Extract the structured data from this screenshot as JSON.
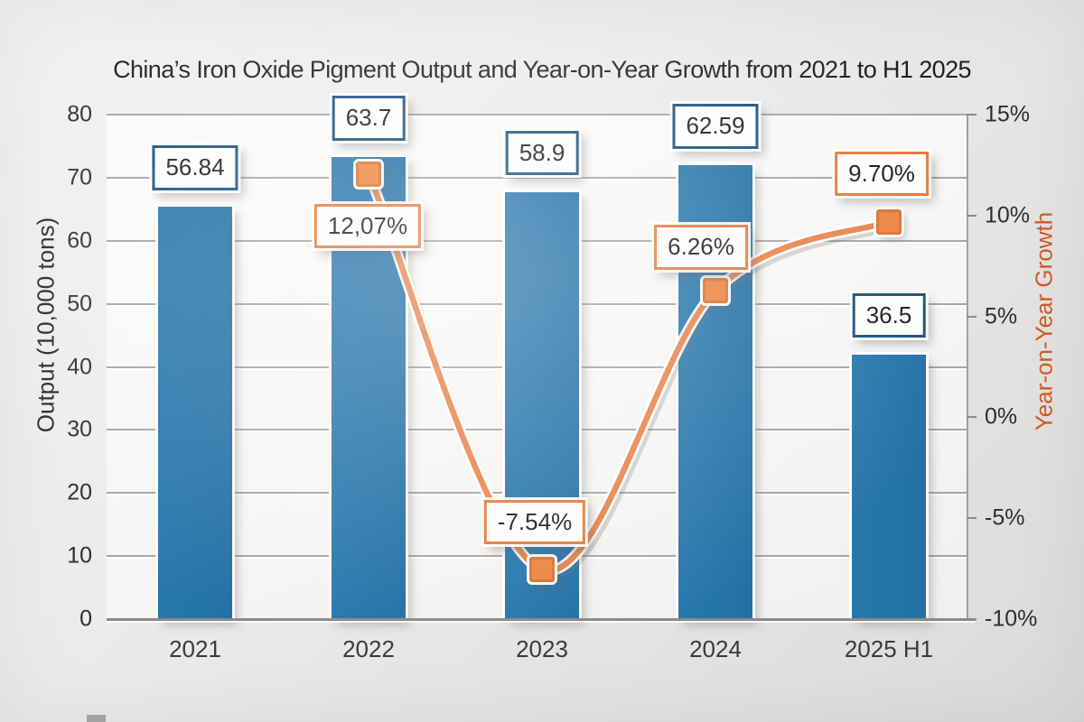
{
  "chart_data": {
    "type": "combo-bar-line",
    "title": "China’s Iron Oxide Pigment Output and Year-on-Year Growth from 2021 to H1 2025",
    "categories": [
      "2021",
      "2022",
      "2023",
      "2024",
      "2025 H1"
    ],
    "series": [
      {
        "name": "Output",
        "type": "bar",
        "axis": "left",
        "color": "#2574a9",
        "values": [
          56.84,
          63.7,
          58.9,
          62.59,
          36.5
        ],
        "data_labels": [
          "56.84",
          "63.7",
          "58.9",
          "62.59",
          "36.5"
        ]
      },
      {
        "name": "Year-on-Year Growth",
        "type": "line",
        "axis": "right",
        "color": "#e8823f",
        "values": [
          null,
          12.07,
          -7.54,
          6.26,
          9.7
        ],
        "data_labels": [
          null,
          "12,07%",
          "-7.54%",
          "6.26%",
          "9.70%"
        ]
      }
    ],
    "left_axis": {
      "title": "Output (10,000 tons)",
      "min": 0,
      "max": 80,
      "step": 10,
      "tick_labels": [
        "0",
        "10",
        "20",
        "30",
        "40",
        "50",
        "60",
        "70",
        "80"
      ]
    },
    "right_axis": {
      "title": "Year-on-Year Growth",
      "min": -10,
      "max": 15,
      "step": 5,
      "tick_labels": [
        "-10%",
        "-5%",
        "0%",
        "5%",
        "10%",
        "15%"
      ],
      "title_color": "#cf5a26"
    },
    "grid": "horizontal",
    "legend": "none",
    "bar_visual_scale": 1.15,
    "label_box_border_colors": {
      "bar": "#1a507c",
      "line": "#e5793c"
    }
  }
}
